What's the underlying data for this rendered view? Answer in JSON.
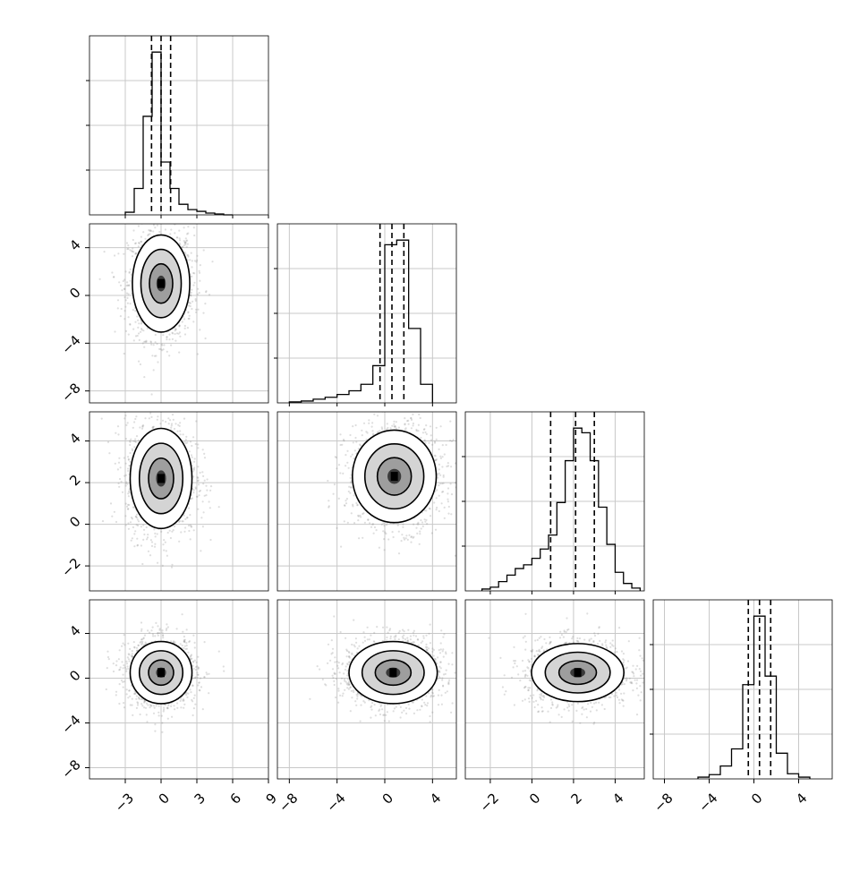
{
  "chart_data": {
    "type": "corner",
    "grid": true,
    "parameters": [
      {
        "range": [
          -6,
          9
        ],
        "ticks": [
          -3,
          0,
          3,
          6,
          9
        ],
        "tick_labels": [
          "−3",
          "0",
          "3",
          "6",
          "9"
        ],
        "quantiles": [
          -0.8,
          0.0,
          0.8
        ],
        "histogram": {
          "bin_edges": [
            -3.0,
            -2.25,
            -1.5,
            -0.75,
            0.0,
            0.75,
            1.5,
            2.25,
            3.0,
            3.75,
            4.5,
            5.25,
            6.0
          ],
          "counts": [
            3,
            30,
            112,
            185,
            60,
            30,
            12,
            6,
            4,
            2,
            1,
            0
          ]
        }
      },
      {
        "range": [
          -9,
          6
        ],
        "ticks": [
          -8,
          -4,
          0,
          4
        ],
        "tick_labels": [
          "−8",
          "−4",
          "0",
          "4"
        ],
        "quantiles": [
          -0.4,
          0.6,
          1.6
        ],
        "histogram": {
          "bin_edges": [
            -8.0,
            -7.0,
            -6.0,
            -5.0,
            -4.0,
            -3.0,
            -2.0,
            -1.0,
            0.0,
            1.0,
            2.0,
            3.0,
            4.0
          ],
          "counts": [
            1,
            2,
            4,
            6,
            9,
            13,
            20,
            40,
            170,
            175,
            80,
            20
          ]
        }
      },
      {
        "range": [
          -3.2,
          5.4
        ],
        "ticks": [
          -2,
          0,
          2,
          4
        ],
        "tick_labels": [
          "−2",
          "0",
          "2",
          "4"
        ],
        "quantiles": [
          0.9,
          2.1,
          3.0
        ],
        "histogram": {
          "bin_edges": [
            -2.4,
            -2.0,
            -1.6,
            -1.2,
            -0.8,
            -0.4,
            0.0,
            0.4,
            0.8,
            1.2,
            1.6,
            2.0,
            2.4,
            2.8,
            3.2,
            3.6,
            4.0,
            4.4,
            4.8,
            5.2
          ],
          "counts": [
            2,
            4,
            10,
            17,
            24,
            28,
            35,
            45,
            60,
            95,
            140,
            175,
            170,
            140,
            90,
            50,
            20,
            8,
            3
          ]
        }
      },
      {
        "range": [
          -9,
          7
        ],
        "ticks": [
          -8,
          -4,
          0,
          4
        ],
        "tick_labels": [
          "−8",
          "−4",
          "0",
          "4"
        ],
        "quantiles": [
          -0.5,
          0.5,
          1.5
        ],
        "histogram": {
          "bin_edges": [
            -5.0,
            -4.0,
            -3.0,
            -2.0,
            -1.0,
            0.0,
            1.0,
            2.0,
            3.0,
            4.0,
            5.0
          ],
          "counts": [
            2,
            5,
            15,
            35,
            110,
            190,
            120,
            30,
            6,
            2
          ]
        }
      }
    ],
    "pairs": [
      {
        "x": 0,
        "y": 1,
        "center": [
          0.0,
          1.0
        ],
        "sd": [
          1.3,
          2.2
        ]
      },
      {
        "x": 0,
        "y": 2,
        "center": [
          0.0,
          2.2
        ],
        "sd": [
          1.4,
          1.3
        ]
      },
      {
        "x": 1,
        "y": 2,
        "center": [
          0.8,
          2.3
        ],
        "sd": [
          1.9,
          1.2
        ]
      },
      {
        "x": 0,
        "y": 3,
        "center": [
          0.0,
          0.5
        ],
        "sd": [
          1.4,
          1.5
        ]
      },
      {
        "x": 1,
        "y": 3,
        "center": [
          0.7,
          0.5
        ],
        "sd": [
          2.0,
          1.5
        ]
      },
      {
        "x": 2,
        "y": 3,
        "center": [
          2.2,
          0.5
        ],
        "sd": [
          1.2,
          1.4
        ]
      }
    ]
  }
}
